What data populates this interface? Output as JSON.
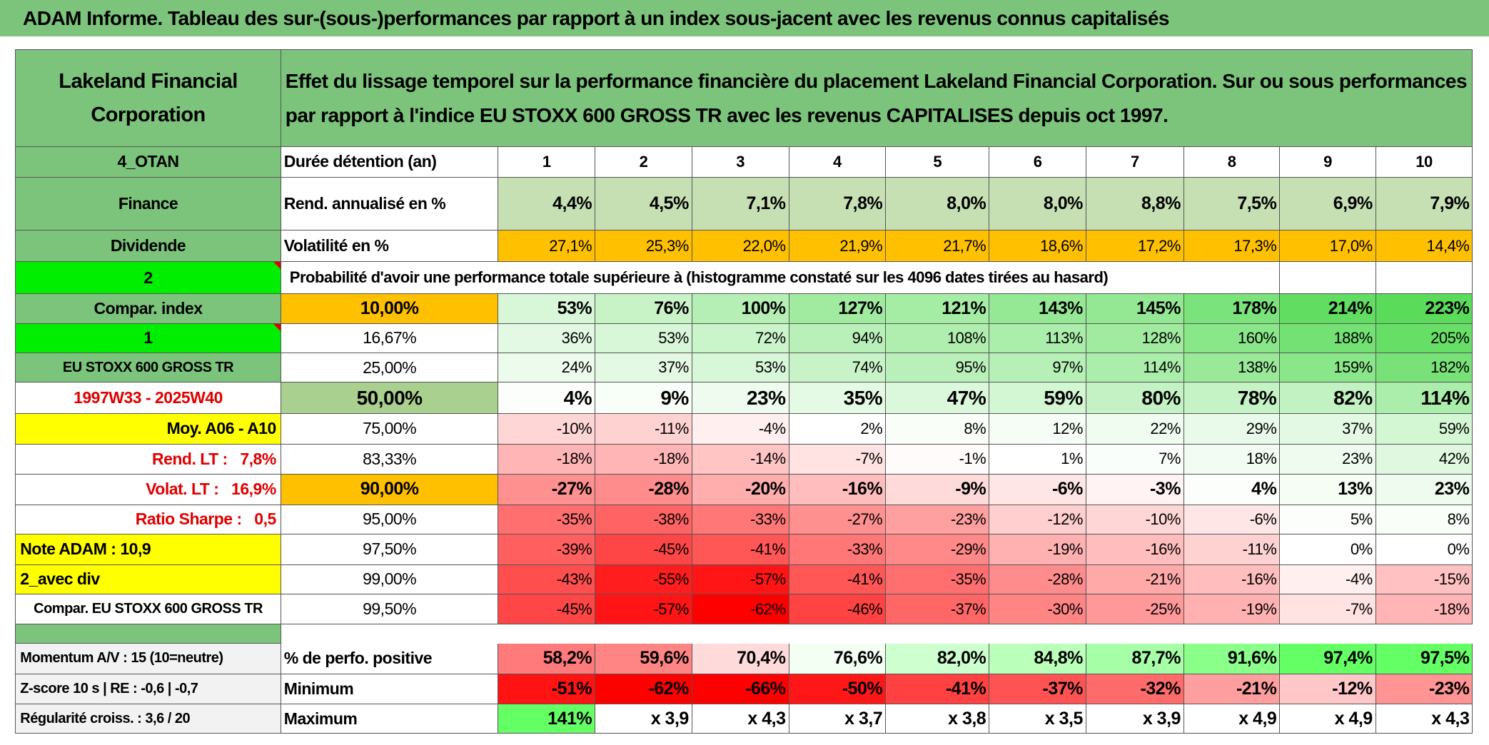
{
  "title": "ADAM Informe. Tableau des sur-(sous-)performances par rapport à un index sous-jacent avec les revenus connus capitalisés",
  "header": {
    "company": "Lakeland Financial Corporation",
    "description": "Effet du lissage temporel sur la performance financière du placement Lakeland Financial Corporation. Sur ou sous performances par rapport à l'indice EU STOXX 600 GROSS TR avec les revenus CAPITALISES depuis oct 1997."
  },
  "rows": [
    {
      "label": "4_OTAN",
      "name": "Durée détention (an)",
      "cells": [
        "1",
        "2",
        "3",
        "4",
        "5",
        "6",
        "7",
        "8",
        "9",
        "10"
      ]
    },
    {
      "label": "Finance",
      "name": "Rend. annualisé en %",
      "cells": [
        "4,4%",
        "4,5%",
        "7,1%",
        "7,8%",
        "8,0%",
        "8,0%",
        "8,8%",
        "7,5%",
        "6,9%",
        "7,9%"
      ]
    },
    {
      "label": "Dividende",
      "name": "Volatilité en %",
      "cells": [
        "27,1%",
        "25,3%",
        "22,0%",
        "21,9%",
        "21,7%",
        "18,6%",
        "17,2%",
        "17,3%",
        "17,0%",
        "14,4%"
      ]
    },
    {
      "label": "2",
      "note": "Probabilité d'avoir une performance totale supérieure à (histogramme constaté sur les 4096 dates tirées au hasard)"
    },
    {
      "label": "Compar. index",
      "name": "10,00%",
      "cells": [
        "53%",
        "76%",
        "100%",
        "127%",
        "121%",
        "143%",
        "145%",
        "178%",
        "214%",
        "223%"
      ]
    },
    {
      "label": "1",
      "name": "16,67%",
      "cells": [
        "36%",
        "53%",
        "72%",
        "94%",
        "108%",
        "113%",
        "128%",
        "160%",
        "188%",
        "205%"
      ]
    },
    {
      "label": "EU STOXX 600 GROSS TR",
      "name": "25,00%",
      "cells": [
        "24%",
        "37%",
        "53%",
        "74%",
        "95%",
        "97%",
        "114%",
        "138%",
        "159%",
        "182%"
      ]
    },
    {
      "label": "1997W33 - 2025W40",
      "name": "50,00%",
      "cells": [
        "4%",
        "9%",
        "23%",
        "35%",
        "47%",
        "59%",
        "80%",
        "78%",
        "82%",
        "114%"
      ]
    },
    {
      "label": "Moy. A06 - A10",
      "name": "75,00%",
      "cells": [
        "-10%",
        "-11%",
        "-4%",
        "2%",
        "8%",
        "12%",
        "22%",
        "29%",
        "37%",
        "59%"
      ]
    },
    {
      "label": "Rend. LT :   7,8%",
      "name": "83,33%",
      "cells": [
        "-18%",
        "-18%",
        "-14%",
        "-7%",
        "-1%",
        "1%",
        "7%",
        "18%",
        "23%",
        "42%"
      ]
    },
    {
      "label": "Volat. LT :   16,9%",
      "name": "90,00%",
      "cells": [
        "-27%",
        "-28%",
        "-20%",
        "-16%",
        "-9%",
        "-6%",
        "-3%",
        "4%",
        "13%",
        "23%"
      ]
    },
    {
      "label": "Ratio Sharpe :   0,5",
      "name": "95,00%",
      "cells": [
        "-35%",
        "-38%",
        "-33%",
        "-27%",
        "-23%",
        "-12%",
        "-10%",
        "-6%",
        "5%",
        "8%"
      ]
    },
    {
      "label": "Note ADAM : 10,9",
      "name": "97,50%",
      "cells": [
        "-39%",
        "-45%",
        "-41%",
        "-33%",
        "-29%",
        "-19%",
        "-16%",
        "-11%",
        "0%",
        "0%"
      ]
    },
    {
      "label": "2_avec div",
      "name": "99,00%",
      "cells": [
        "-43%",
        "-55%",
        "-57%",
        "-41%",
        "-35%",
        "-28%",
        "-21%",
        "-16%",
        "-4%",
        "-15%"
      ]
    },
    {
      "label": "Compar. EU STOXX 600 GROSS TR",
      "name": "99,50%",
      "cells": [
        "-45%",
        "-57%",
        "-62%",
        "-46%",
        "-37%",
        "-30%",
        "-25%",
        "-19%",
        "-7%",
        "-18%"
      ]
    },
    {
      "label": "Momentum A/V : 15 (10=neutre)",
      "name": "% de perfo. positive",
      "cells": [
        "58,2%",
        "59,6%",
        "70,4%",
        "76,6%",
        "82,0%",
        "84,8%",
        "87,7%",
        "91,6%",
        "97,4%",
        "97,5%"
      ]
    },
    {
      "label": "Z-score 10 s | RE : -0,6 | -0,7",
      "name": "Minimum",
      "cells": [
        "-51%",
        "-62%",
        "-66%",
        "-50%",
        "-41%",
        "-37%",
        "-32%",
        "-21%",
        "-12%",
        "-23%"
      ]
    },
    {
      "label": "Régularité croiss. : 3,6 / 20",
      "name": "Maximum",
      "cells": [
        "141%",
        "x 3,9",
        "x 4,3",
        "x 3,7",
        "x 3,8",
        "x 3,5",
        "x 3,9",
        "x 4,9",
        "x 4,9",
        "x 4,3"
      ]
    }
  ]
}
